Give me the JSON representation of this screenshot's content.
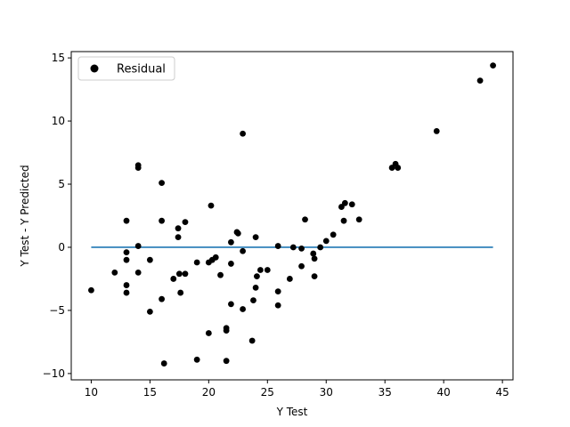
{
  "chart_data": {
    "type": "scatter",
    "xlabel": "Y Test",
    "ylabel": "Y Test - Y Predicted",
    "xlim": [
      8.3,
      45.9
    ],
    "ylim": [
      -10.5,
      15.5
    ],
    "x_ticks": [
      10,
      15,
      20,
      25,
      30,
      35,
      40,
      45
    ],
    "y_ticks": [
      -10,
      -5,
      0,
      5,
      10,
      15
    ],
    "grid": false,
    "legend_position": "top-left",
    "series": [
      {
        "name": "Residual",
        "color": "#000000",
        "marker": "circle",
        "points": [
          {
            "x": 10.0,
            "y": -3.4
          },
          {
            "x": 12.0,
            "y": -2.0
          },
          {
            "x": 13.0,
            "y": 2.1
          },
          {
            "x": 13.0,
            "y": -0.4
          },
          {
            "x": 13.0,
            "y": -1.0
          },
          {
            "x": 13.0,
            "y": -3.0
          },
          {
            "x": 13.0,
            "y": -3.6
          },
          {
            "x": 14.0,
            "y": 6.5
          },
          {
            "x": 14.0,
            "y": 6.3
          },
          {
            "x": 14.0,
            "y": 0.1
          },
          {
            "x": 14.0,
            "y": -2.0
          },
          {
            "x": 15.0,
            "y": -1.0
          },
          {
            "x": 15.0,
            "y": -5.1
          },
          {
            "x": 16.0,
            "y": 5.1
          },
          {
            "x": 16.0,
            "y": 2.1
          },
          {
            "x": 16.0,
            "y": -4.1
          },
          {
            "x": 16.2,
            "y": -9.2
          },
          {
            "x": 17.0,
            "y": -2.5
          },
          {
            "x": 17.4,
            "y": 1.5
          },
          {
            "x": 17.4,
            "y": 0.8
          },
          {
            "x": 17.5,
            "y": -2.1
          },
          {
            "x": 17.6,
            "y": -3.6
          },
          {
            "x": 18.0,
            "y": 2.0
          },
          {
            "x": 18.0,
            "y": -2.1
          },
          {
            "x": 19.0,
            "y": -1.2
          },
          {
            "x": 19.0,
            "y": -8.9
          },
          {
            "x": 20.0,
            "y": -1.2
          },
          {
            "x": 20.0,
            "y": -6.8
          },
          {
            "x": 20.2,
            "y": 3.3
          },
          {
            "x": 20.3,
            "y": -1.0
          },
          {
            "x": 20.6,
            "y": -0.8
          },
          {
            "x": 21.0,
            "y": -2.2
          },
          {
            "x": 21.5,
            "y": -6.4
          },
          {
            "x": 21.5,
            "y": -6.6
          },
          {
            "x": 21.5,
            "y": -9.0
          },
          {
            "x": 21.9,
            "y": 0.4
          },
          {
            "x": 21.9,
            "y": -1.3
          },
          {
            "x": 21.9,
            "y": -4.5
          },
          {
            "x": 22.4,
            "y": 1.2
          },
          {
            "x": 22.5,
            "y": 1.1
          },
          {
            "x": 22.9,
            "y": 9.0
          },
          {
            "x": 22.9,
            "y": -0.3
          },
          {
            "x": 22.9,
            "y": -4.9
          },
          {
            "x": 23.7,
            "y": -7.4
          },
          {
            "x": 23.8,
            "y": -4.2
          },
          {
            "x": 24.0,
            "y": 0.8
          },
          {
            "x": 24.0,
            "y": -3.2
          },
          {
            "x": 24.1,
            "y": -2.3
          },
          {
            "x": 24.4,
            "y": -1.8
          },
          {
            "x": 25.0,
            "y": -1.8
          },
          {
            "x": 25.9,
            "y": 0.1
          },
          {
            "x": 25.9,
            "y": -3.5
          },
          {
            "x": 25.9,
            "y": -4.6
          },
          {
            "x": 26.9,
            "y": -2.5
          },
          {
            "x": 27.2,
            "y": 0.0
          },
          {
            "x": 27.9,
            "y": -0.1
          },
          {
            "x": 27.9,
            "y": -1.5
          },
          {
            "x": 28.2,
            "y": 2.2
          },
          {
            "x": 28.9,
            "y": -0.5
          },
          {
            "x": 29.0,
            "y": -0.9
          },
          {
            "x": 29.0,
            "y": -2.3
          },
          {
            "x": 29.5,
            "y": 0.0
          },
          {
            "x": 30.0,
            "y": 0.5
          },
          {
            "x": 30.6,
            "y": 1.0
          },
          {
            "x": 31.3,
            "y": 3.2
          },
          {
            "x": 31.6,
            "y": 3.5
          },
          {
            "x": 31.5,
            "y": 2.1
          },
          {
            "x": 32.2,
            "y": 3.4
          },
          {
            "x": 32.8,
            "y": 2.2
          },
          {
            "x": 35.6,
            "y": 6.3
          },
          {
            "x": 35.9,
            "y": 6.6
          },
          {
            "x": 36.1,
            "y": 6.3
          },
          {
            "x": 39.4,
            "y": 9.2
          },
          {
            "x": 43.1,
            "y": 13.2
          },
          {
            "x": 44.2,
            "y": 14.4
          }
        ]
      }
    ],
    "reference_line": {
      "x": [
        10.0,
        44.2
      ],
      "y": [
        0,
        0
      ],
      "color": "#1f77b4"
    }
  }
}
